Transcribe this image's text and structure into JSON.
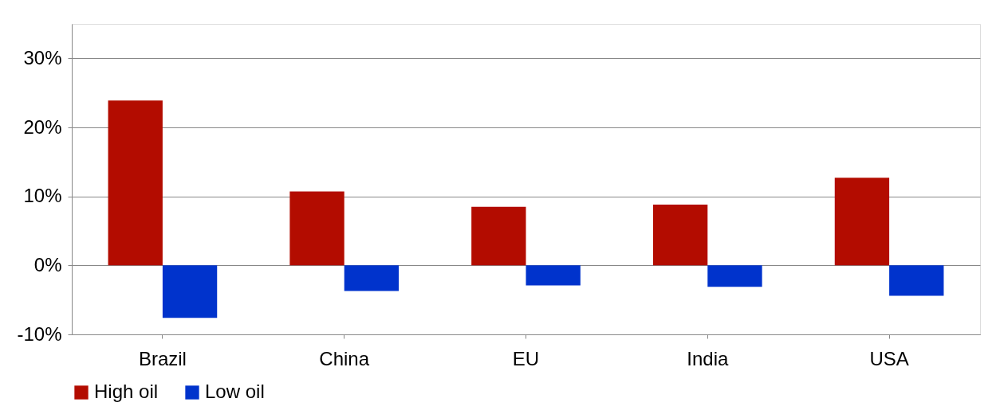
{
  "chart_data": {
    "type": "bar",
    "categories": [
      "Brazil",
      "China",
      "EU",
      "India",
      "USA"
    ],
    "series": [
      {
        "name": "High oil",
        "color": "#b30c00",
        "values": [
          23.9,
          10.7,
          8.5,
          8.8,
          12.7
        ]
      },
      {
        "name": "Low oil",
        "color": "#0033cc",
        "values": [
          -7.6,
          -3.7,
          -2.9,
          -3.1,
          -4.4
        ]
      }
    ],
    "ylim": [
      -10,
      35
    ],
    "yticks": [
      {
        "value": -10,
        "label": "-10%"
      },
      {
        "value": 0,
        "label": "0%"
      },
      {
        "value": 10,
        "label": "10%"
      },
      {
        "value": 20,
        "label": "20%"
      },
      {
        "value": 30,
        "label": "30%"
      }
    ],
    "grid": "y",
    "legend": "bottom"
  }
}
